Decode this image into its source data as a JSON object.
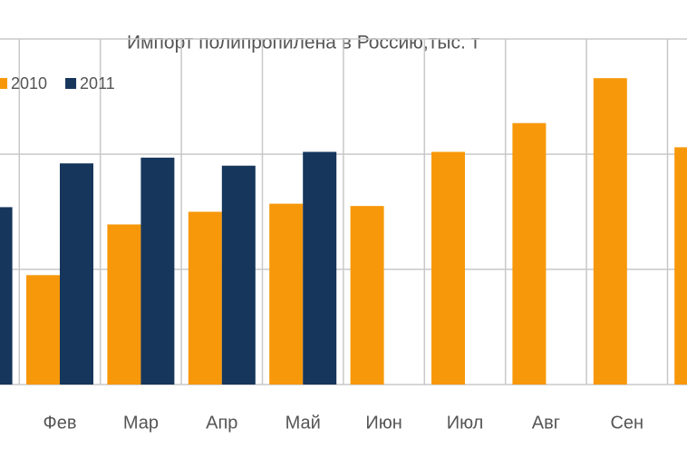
{
  "chart_data": {
    "type": "bar",
    "title": "Импорт полипропилена в Россию,тыс. т",
    "categories": [
      null,
      "Фев",
      "Мар",
      "Апр",
      "Май",
      "Июн",
      "Июл",
      "Авг",
      "Сен",
      null
    ],
    "series": [
      {
        "name": "2010",
        "color": "#f7980a",
        "values": [
          null,
          9.5,
          13.9,
          15.0,
          15.7,
          15.5,
          20.2,
          22.7,
          26.6,
          20.6
        ]
      },
      {
        "name": "2011",
        "color": "#16365c",
        "values": [
          15.4,
          19.2,
          19.7,
          19.0,
          20.2,
          null,
          null,
          null,
          null,
          null
        ]
      }
    ],
    "ylim": [
      0,
      30
    ],
    "grid": true
  }
}
